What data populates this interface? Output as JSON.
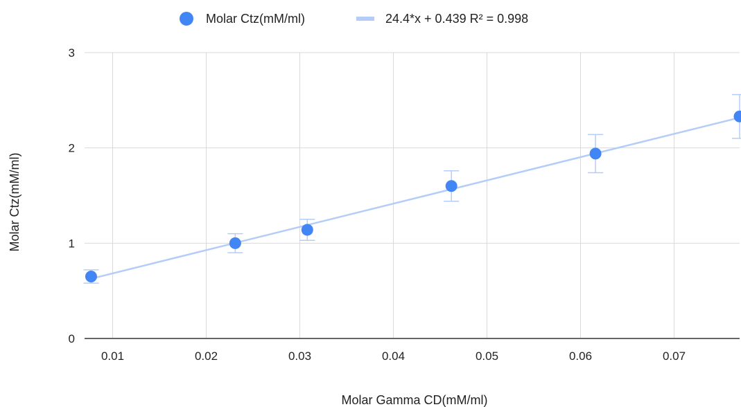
{
  "chart_data": {
    "type": "scatter",
    "title": "",
    "xlabel": "Molar Gamma CD(mM/ml)",
    "ylabel": "Molar Ctz(mM/ml)",
    "xlim": [
      0.007,
      0.077
    ],
    "ylim": [
      0,
      3
    ],
    "x_ticks": [
      0.01,
      0.02,
      0.03,
      0.04,
      0.05,
      0.06,
      0.07
    ],
    "x_tick_labels": [
      "0.01",
      "0.02",
      "0.03",
      "0.04",
      "0.05",
      "0.06",
      "0.07"
    ],
    "y_ticks": [
      0,
      1,
      2,
      3
    ],
    "y_tick_labels": [
      "0",
      "1",
      "2",
      "3"
    ],
    "grid": true,
    "legend_position": "top",
    "series": [
      {
        "name": "Molar Ctz(mM/ml)",
        "color": "#4285f4",
        "x": [
          0.0077,
          0.0231,
          0.0308,
          0.0462,
          0.0616,
          0.077
        ],
        "y": [
          0.65,
          1.0,
          1.14,
          1.6,
          1.94,
          2.33
        ],
        "error": [
          0.07,
          0.1,
          0.11,
          0.16,
          0.2,
          0.23
        ]
      }
    ],
    "trendline": {
      "label": "24.4*x + 0.439 R² = 0.998",
      "slope": 24.4,
      "intercept": 0.439,
      "r_squared": 0.998,
      "color": "#b3cdf8"
    },
    "error_bar_color": "#b3cdf8"
  }
}
